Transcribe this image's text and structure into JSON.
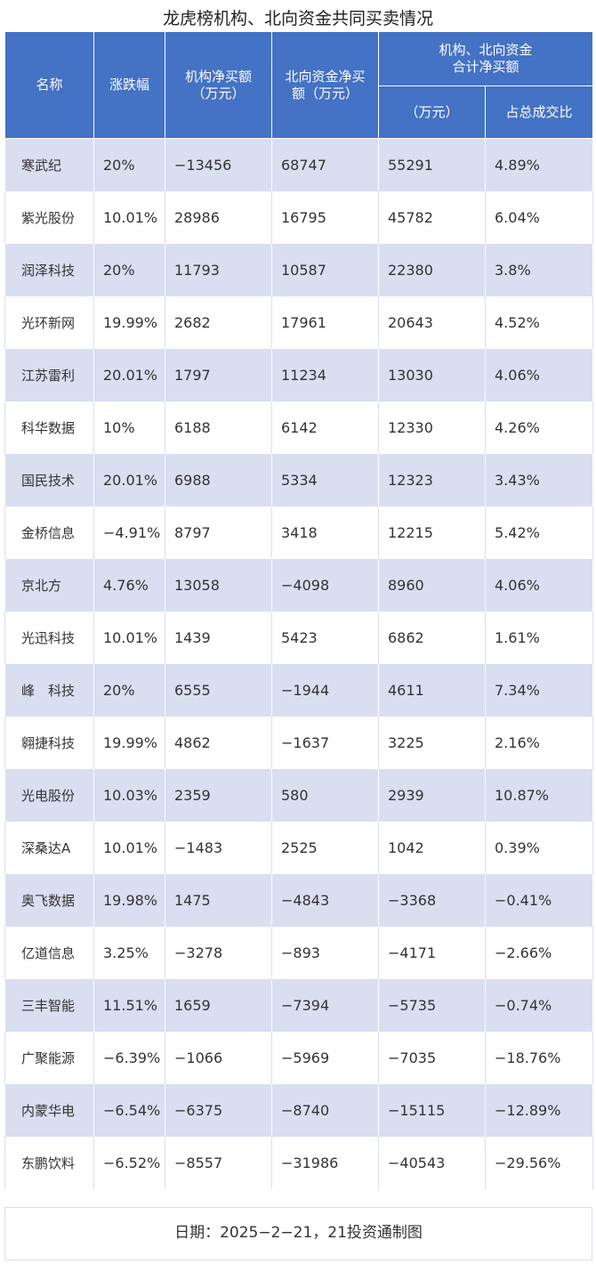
{
  "title": "龙虎榜机构、北向资金共同买卖情况",
  "header": {
    "name": "名称",
    "change": "涨跌幅",
    "inst_net_line1": "机构净买额",
    "inst_net_line2": "（万元）",
    "north_net_line1": "北向资金净买",
    "north_net_line2": "额（万元）",
    "combined_group_line1": "机构、北向资金",
    "combined_group_line2": "合计净买额",
    "combined_unit": "（万元）",
    "combined_ratio": "占总成交比"
  },
  "rows": [
    {
      "name": "寒武纪",
      "change": "20%",
      "inst": "−13456",
      "north": "68747",
      "total": "55291",
      "ratio": "4.89%"
    },
    {
      "name": "紫光股份",
      "change": "10.01%",
      "inst": "28986",
      "north": "16795",
      "total": "45782",
      "ratio": "6.04%"
    },
    {
      "name": "润泽科技",
      "change": "20%",
      "inst": "11793",
      "north": "10587",
      "total": "22380",
      "ratio": "3.8%"
    },
    {
      "name": "光环新网",
      "change": "19.99%",
      "inst": "2682",
      "north": "17961",
      "total": "20643",
      "ratio": "4.52%"
    },
    {
      "name": "江苏雷利",
      "change": "20.01%",
      "inst": "1797",
      "north": "11234",
      "total": "13030",
      "ratio": "4.06%"
    },
    {
      "name": "科华数据",
      "change": "10%",
      "inst": "6188",
      "north": "6142",
      "total": "12330",
      "ratio": "4.26%"
    },
    {
      "name": "国民技术",
      "change": "20.01%",
      "inst": "6988",
      "north": "5334",
      "total": "12323",
      "ratio": "3.43%"
    },
    {
      "name": "金桥信息",
      "change": "−4.91%",
      "inst": "8797",
      "north": "3418",
      "total": "12215",
      "ratio": "5.42%"
    },
    {
      "name": "京北方",
      "change": "4.76%",
      "inst": "13058",
      "north": "−4098",
      "total": "8960",
      "ratio": "4.06%"
    },
    {
      "name": "光迅科技",
      "change": "10.01%",
      "inst": "1439",
      "north": "5423",
      "total": "6862",
      "ratio": "1.61%"
    },
    {
      "name": "峰　科技",
      "change": "20%",
      "inst": "6555",
      "north": "−1944",
      "total": "4611",
      "ratio": "7.34%"
    },
    {
      "name": "翱捷科技",
      "change": "19.99%",
      "inst": "4862",
      "north": "−1637",
      "total": "3225",
      "ratio": "2.16%"
    },
    {
      "name": "光电股份",
      "change": "10.03%",
      "inst": "2359",
      "north": "580",
      "total": "2939",
      "ratio": "10.87%"
    },
    {
      "name": "深桑达A",
      "change": "10.01%",
      "inst": "−1483",
      "north": "2525",
      "total": "1042",
      "ratio": "0.39%"
    },
    {
      "name": "奥飞数据",
      "change": "19.98%",
      "inst": "1475",
      "north": "−4843",
      "total": "−3368",
      "ratio": "−0.41%"
    },
    {
      "name": "亿道信息",
      "change": "3.25%",
      "inst": "−3278",
      "north": "−893",
      "total": "−4171",
      "ratio": "−2.66%"
    },
    {
      "name": "三丰智能",
      "change": "11.51%",
      "inst": "1659",
      "north": "−7394",
      "total": "−5735",
      "ratio": "−0.74%"
    },
    {
      "name": "广聚能源",
      "change": "−6.39%",
      "inst": "−1066",
      "north": "−5969",
      "total": "−7035",
      "ratio": "−18.76%"
    },
    {
      "name": "内蒙华电",
      "change": "−6.54%",
      "inst": "−6375",
      "north": "−8740",
      "total": "−15115",
      "ratio": "−12.89%"
    },
    {
      "name": "东鹏饮料",
      "change": "−6.52%",
      "inst": "−8557",
      "north": "−31986",
      "total": "−40543",
      "ratio": "−29.56%"
    }
  ],
  "footer": "日期：2025−2−21，21投资通制图"
}
